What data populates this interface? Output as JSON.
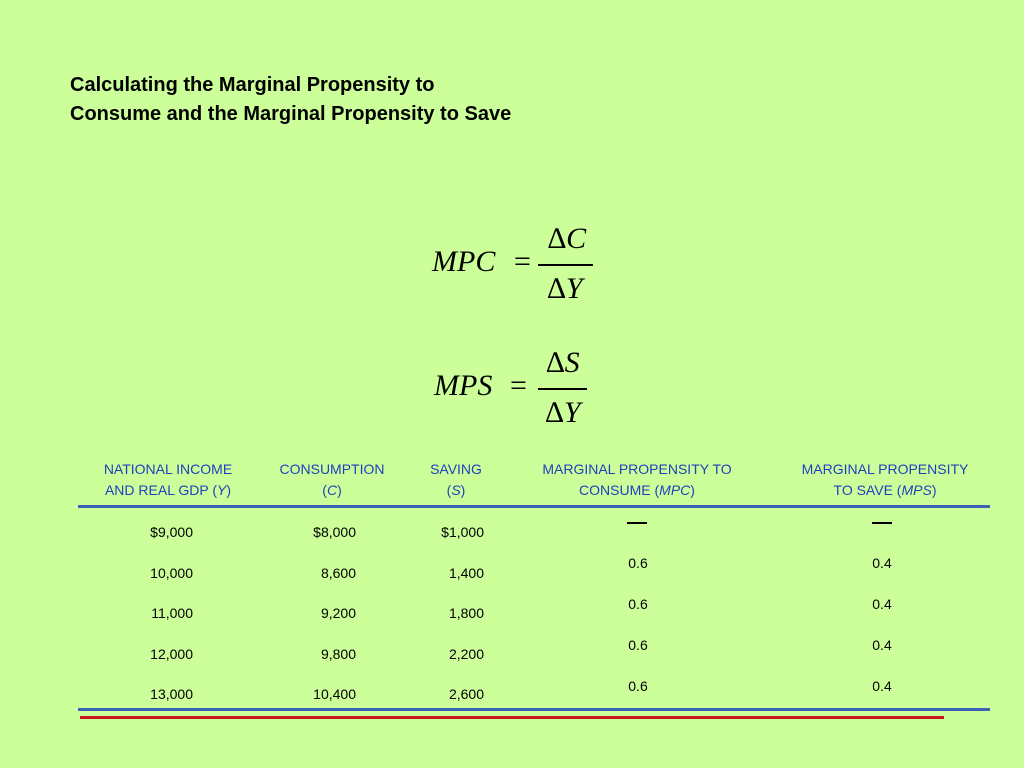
{
  "title": {
    "line1": "Calculating the Marginal Propensity to",
    "line2": "Consume and the Marginal Propensity to Save"
  },
  "formulas": {
    "mpc": {
      "lhs": "MPC",
      "eq": "=",
      "num_delta": "∆",
      "num_var": "C",
      "den_delta": "∆",
      "den_var": "Y"
    },
    "mps": {
      "lhs": "MPS",
      "eq": "=",
      "num_delta": "∆",
      "num_var": "S",
      "den_delta": "∆",
      "den_var": "Y"
    }
  },
  "table": {
    "headers": {
      "income": {
        "line1": "NATIONAL INCOME",
        "line2_pre": "AND REAL GDP (",
        "line2_var": "Y",
        "line2_post": ")"
      },
      "consumption": {
        "line1": "CONSUMPTION",
        "line2_pre": "(",
        "line2_var": "C",
        "line2_post": ")"
      },
      "saving": {
        "line1": "SAVING",
        "line2_pre": "(",
        "line2_var": "S",
        "line2_post": ")"
      },
      "mpc": {
        "line1": "MARGINAL PROPENSITY TO",
        "line2_pre": "CONSUME (",
        "line2_var": "MPC",
        "line2_post": ")"
      },
      "mps": {
        "line1": "MARGINAL PROPENSITY",
        "line2_pre": "TO SAVE (",
        "line2_var": "MPS",
        "line2_post": ")"
      }
    },
    "rows": [
      {
        "income": "$9,000",
        "consumption": "$8,000",
        "saving": "$1,000"
      },
      {
        "income": "10,000",
        "consumption": "8,600",
        "saving": "1,400"
      },
      {
        "income": "11,000",
        "consumption": "9,200",
        "saving": "1,800"
      },
      {
        "income": "12,000",
        "consumption": "9,800",
        "saving": "2,200"
      },
      {
        "income": "13,000",
        "consumption": "10,400",
        "saving": "2,600"
      }
    ],
    "mpc_values": [
      "0.6",
      "0.6",
      "0.6",
      "0.6"
    ],
    "mps_values": [
      "0.4",
      "0.4",
      "0.4",
      "0.4"
    ]
  },
  "colors": {
    "background": "#ccff99",
    "header_text": "#1f3fbf",
    "rule_blue": "#3a63b8",
    "rule_red": "#c8141e"
  }
}
